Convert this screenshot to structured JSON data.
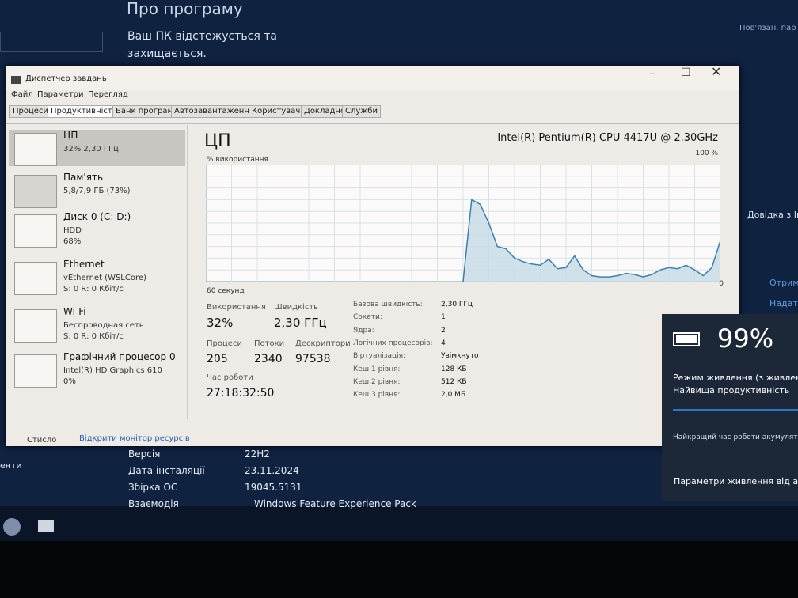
{
  "background": {
    "title": "Про програму",
    "status_line1": "Ваш ПК відстежується та",
    "status_line2": "захищається.",
    "related": "Пов'язан. пар",
    "help": "Довідка з Ін",
    "get_help": "Отрим",
    "feedback": "Надат",
    "left_item": "енти",
    "specs": [
      {
        "label": "Версія",
        "value": "22H2"
      },
      {
        "label": "Дата інсталяції",
        "value": "23.11.2024"
      },
      {
        "label": "Збірка ОС",
        "value": "19045.5131"
      },
      {
        "label": "Взаємодія",
        "value": "Windows Feature Experience Pack"
      }
    ]
  },
  "window": {
    "title": "Диспетчер завдань",
    "menu": [
      "Файл",
      "Параметри",
      "Перегляд"
    ],
    "tabs": [
      "Процеси",
      "Продуктивність",
      "Банк програм",
      "Автозавантаження",
      "Користувачі",
      "Докладно",
      "Служби"
    ],
    "sidebar": [
      {
        "name": "ЦП",
        "details": [
          "32% 2,30 ГГц"
        ]
      },
      {
        "name": "Пам'ять",
        "details": [
          "5,8/7,9 ГБ (73%)"
        ]
      },
      {
        "name": "Диск 0 (C: D:)",
        "details": [
          "HDD",
          "68%"
        ]
      },
      {
        "name": "Ethernet",
        "details": [
          "vEthernet (WSLCore)",
          "S: 0 R: 0 Кбіт/с"
        ]
      },
      {
        "name": "Wi-Fi",
        "details": [
          "Беспроводная сеть",
          "S: 0 R: 0 Кбіт/с"
        ]
      },
      {
        "name": "Графічний процесор 0",
        "details": [
          "Intel(R) HD Graphics 610",
          "0%"
        ]
      }
    ],
    "main": {
      "heading": "ЦП",
      "cpu_name": "Intel(R) Pentium(R) CPU 4417U @ 2.30GHz",
      "graph": {
        "ylabel": "% використання",
        "ymax": {
          "value": 100,
          "label": "100 %"
        },
        "ymin": {
          "value": 0,
          "label": "0"
        },
        "xlabel": "60 секунд",
        "values": [
          null,
          null,
          null,
          null,
          null,
          null,
          null,
          null,
          null,
          null,
          null,
          null,
          null,
          null,
          null,
          null,
          null,
          null,
          null,
          null,
          null,
          null,
          null,
          null,
          null,
          null,
          null,
          null,
          null,
          null,
          0,
          70,
          66,
          50,
          30,
          28,
          20,
          17,
          15,
          14,
          19,
          11,
          12,
          22,
          10,
          5,
          4,
          4,
          5,
          7,
          6,
          4,
          6,
          10,
          12,
          11,
          14,
          10,
          5,
          12,
          35
        ]
      },
      "stats": [
        {
          "label": "Використання",
          "value": "32%"
        },
        {
          "label": "Швидкість",
          "value": "2,30 ГГц"
        },
        {
          "label": "Процеси",
          "value": "205"
        },
        {
          "label": "Потоки",
          "value": "2340"
        },
        {
          "label": "Дескриптори",
          "value": "97538"
        },
        {
          "label": "Час роботи",
          "value": "27:18:32:50"
        }
      ],
      "specs": [
        {
          "label": "Базова швидкість:",
          "value": "2,30 ГГц"
        },
        {
          "label": "Сокети:",
          "value": "1"
        },
        {
          "label": "Ядра:",
          "value": "2"
        },
        {
          "label": "Логічних процесорів:",
          "value": "4"
        },
        {
          "label": "Віртуалізація:",
          "value": "Увімкнуто"
        },
        {
          "label": "Кеш 1 рівня:",
          "value": "128 КБ"
        },
        {
          "label": "Кеш 2 рівня:",
          "value": "512 КБ"
        },
        {
          "label": "Кеш 3 рівня:",
          "value": "2,0 МБ"
        }
      ]
    },
    "footer": {
      "collapse": "Стисло",
      "monitor": "Відкрити монітор ресурсів"
    }
  },
  "battery": {
    "percent": "99%",
    "mode_label": "Режим живлення (з живленн",
    "mode_value": "Найвища продуктивність",
    "best_battery": "Найкращий час роботи акумулято",
    "settings": "Параметри живлення від аку"
  }
}
